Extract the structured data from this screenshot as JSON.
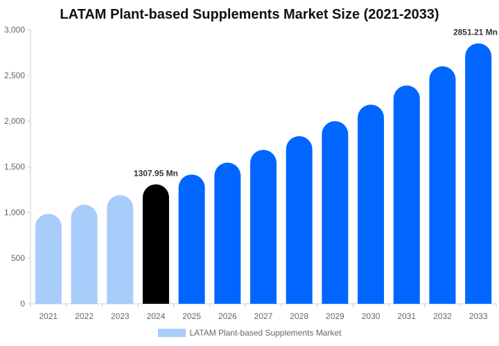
{
  "chart_data": {
    "type": "bar",
    "title": "LATAM Plant-based Supplements Market Size (2021-2033)",
    "categories": [
      "2021",
      "2022",
      "2023",
      "2024",
      "2025",
      "2026",
      "2027",
      "2028",
      "2029",
      "2030",
      "2031",
      "2032",
      "2033"
    ],
    "series": [
      {
        "name": "LATAM Plant-based Supplements Market",
        "values": [
          985,
          1085,
          1190,
          1307.95,
          1415,
          1545,
          1685,
          1835,
          2000,
          2180,
          2390,
          2600,
          2851.21
        ]
      }
    ],
    "data_labels": [
      {
        "category": "2024",
        "text": "1307.95 Mn"
      },
      {
        "category": "2033",
        "text": "2851.21 Mn"
      }
    ],
    "ylim": [
      0,
      3000
    ],
    "yticks": [
      0,
      500,
      1000,
      1500,
      2000,
      2500,
      3000
    ],
    "ytick_labels": [
      "0",
      "500",
      "1,000",
      "1,500",
      "2,000",
      "2,500",
      "3,000"
    ],
    "grid": false,
    "legend_position": "bottom",
    "colors": {
      "historic": "#a8cdfb",
      "current": "#000000",
      "forecast": "#0066ff",
      "axis": "#cccccc",
      "tick_text": "#666666",
      "label_text": "#333333"
    }
  }
}
